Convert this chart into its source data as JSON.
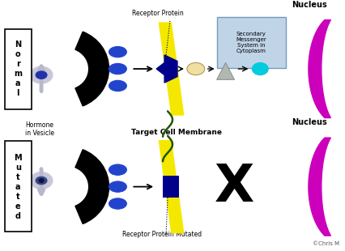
{
  "bg_color": "#ffffff",
  "normal_label": "N\no\nr\nm\na\nl",
  "mutated_label": "M\nu\nt\na\nt\ne\nd",
  "hormone_label": "Hormone\nin Vesicle",
  "receptor_label": "Receptor Protein",
  "receptor_mutated_label": "Receptor Protein Mutated",
  "target_cell_label": "Target Cell Membrane",
  "nucleus_label": "Nucleus",
  "secondary_messenger_label": "Secondary\nMessenger\nSystem in\nCytoplasm",
  "copyright": "©Chris M",
  "yellow": "#f5e800",
  "magenta": "#cc00bb",
  "blue_dark": "#00008a",
  "blue_dots": "#2244cc",
  "blue_vesicle_inner": "#2233aa",
  "gray_light": "#c8c8d8",
  "gray_arrow": "#b8b8cc",
  "cream": "#f0dfa0",
  "triangle_color": "#b0b8b0",
  "cyan": "#00ccdd",
  "box_blue_edge": "#7799bb",
  "box_blue_fill": "#c0d4e8",
  "dark_green": "#225500",
  "black": "#000000",
  "white": "#ffffff"
}
